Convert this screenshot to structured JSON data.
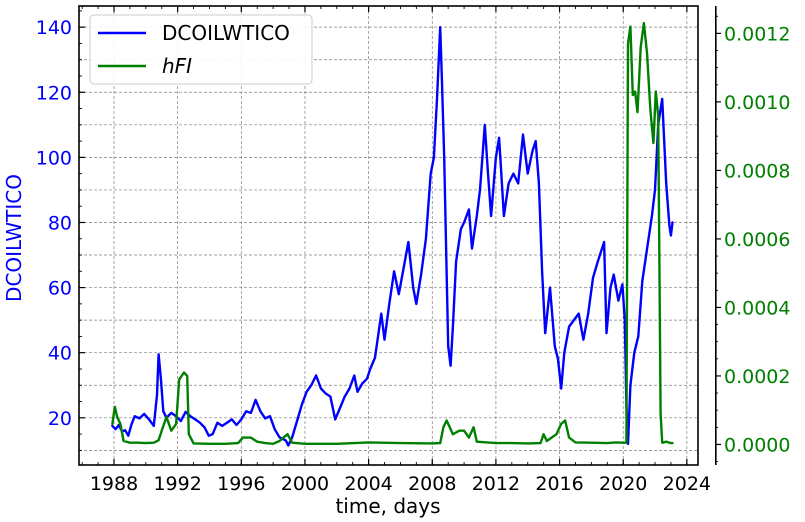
{
  "chart_data": {
    "type": "line",
    "xlabel": "time, days",
    "ylabel_left": "DCOILWTICO",
    "x_ticks": [
      "1988",
      "1992",
      "1996",
      "2000",
      "2004",
      "2008",
      "2012",
      "2016",
      "2020",
      "2024"
    ],
    "xlim": [
      1985.8,
      2024.7
    ],
    "left_axis": {
      "ticks": [
        "20",
        "40",
        "60",
        "80",
        "100",
        "120",
        "140"
      ],
      "ylim": [
        5.5,
        146.5
      ],
      "color": "#0000ff"
    },
    "right_axis": {
      "ticks": [
        "0.0000",
        "0.0002",
        "0.0004",
        "0.0006",
        "0.0008",
        "0.0010",
        "0.0012"
      ],
      "ylim": [
        -6e-05,
        0.00128
      ],
      "color": "#008000"
    },
    "grid": true,
    "legend_position": "top-left",
    "series": [
      {
        "name": "DCOILWTICO",
        "axis": "left",
        "color": "#0000ff",
        "points": [
          [
            1987.9,
            17.5
          ],
          [
            1988.1,
            16.5
          ],
          [
            1988.3,
            17.8
          ],
          [
            1988.5,
            15.8
          ],
          [
            1988.7,
            16.2
          ],
          [
            1988.9,
            14.5
          ],
          [
            1989.1,
            18.0
          ],
          [
            1989.3,
            20.5
          ],
          [
            1989.6,
            19.8
          ],
          [
            1989.9,
            21.2
          ],
          [
            1990.2,
            19.5
          ],
          [
            1990.5,
            17.5
          ],
          [
            1990.7,
            27.0
          ],
          [
            1990.8,
            39.5
          ],
          [
            1990.95,
            32.0
          ],
          [
            1991.1,
            22.0
          ],
          [
            1991.3,
            20.0
          ],
          [
            1991.6,
            21.5
          ],
          [
            1991.9,
            20.5
          ],
          [
            1992.2,
            19.0
          ],
          [
            1992.5,
            21.8
          ],
          [
            1992.8,
            20.5
          ],
          [
            1993.1,
            19.5
          ],
          [
            1993.4,
            18.5
          ],
          [
            1993.7,
            17.0
          ],
          [
            1993.95,
            14.5
          ],
          [
            1994.2,
            15.0
          ],
          [
            1994.5,
            18.5
          ],
          [
            1994.8,
            17.5
          ],
          [
            1995.1,
            18.5
          ],
          [
            1995.4,
            19.5
          ],
          [
            1995.7,
            17.8
          ],
          [
            1996.0,
            19.5
          ],
          [
            1996.3,
            22.0
          ],
          [
            1996.6,
            21.5
          ],
          [
            1996.9,
            25.5
          ],
          [
            1997.2,
            22.0
          ],
          [
            1997.5,
            19.8
          ],
          [
            1997.8,
            20.5
          ],
          [
            1998.1,
            16.5
          ],
          [
            1998.4,
            14.0
          ],
          [
            1998.8,
            13.0
          ],
          [
            1998.95,
            11.5
          ],
          [
            1999.2,
            14.0
          ],
          [
            1999.5,
            19.0
          ],
          [
            1999.8,
            24.0
          ],
          [
            2000.1,
            28.0
          ],
          [
            2000.4,
            30.0
          ],
          [
            2000.7,
            33.0
          ],
          [
            2001.0,
            29.0
          ],
          [
            2001.3,
            27.5
          ],
          [
            2001.6,
            26.5
          ],
          [
            2001.9,
            19.5
          ],
          [
            2002.2,
            23.0
          ],
          [
            2002.5,
            26.5
          ],
          [
            2002.8,
            29.0
          ],
          [
            2003.1,
            33.0
          ],
          [
            2003.3,
            28.0
          ],
          [
            2003.6,
            30.5
          ],
          [
            2003.9,
            32.0
          ],
          [
            2004.1,
            35.0
          ],
          [
            2004.4,
            38.5
          ],
          [
            2004.8,
            52.0
          ],
          [
            2005.0,
            44.0
          ],
          [
            2005.3,
            55.0
          ],
          [
            2005.6,
            65.0
          ],
          [
            2005.9,
            58.0
          ],
          [
            2006.2,
            66.0
          ],
          [
            2006.5,
            74.0
          ],
          [
            2006.8,
            60.0
          ],
          [
            2007.0,
            55.0
          ],
          [
            2007.3,
            64.0
          ],
          [
            2007.6,
            75.0
          ],
          [
            2007.9,
            95.0
          ],
          [
            2008.1,
            100.0
          ],
          [
            2008.3,
            118.0
          ],
          [
            2008.5,
            140.0
          ],
          [
            2008.6,
            125.0
          ],
          [
            2008.75,
            100.0
          ],
          [
            2008.9,
            65.0
          ],
          [
            2009.0,
            42.0
          ],
          [
            2009.15,
            36.0
          ],
          [
            2009.3,
            48.0
          ],
          [
            2009.5,
            68.0
          ],
          [
            2009.8,
            78.0
          ],
          [
            2010.0,
            80.0
          ],
          [
            2010.3,
            84.0
          ],
          [
            2010.5,
            72.0
          ],
          [
            2010.8,
            82.0
          ],
          [
            2011.0,
            90.0
          ],
          [
            2011.3,
            110.0
          ],
          [
            2011.5,
            95.0
          ],
          [
            2011.7,
            82.0
          ],
          [
            2012.0,
            100.0
          ],
          [
            2012.2,
            106.0
          ],
          [
            2012.5,
            82.0
          ],
          [
            2012.8,
            92.0
          ],
          [
            2013.1,
            95.0
          ],
          [
            2013.4,
            92.0
          ],
          [
            2013.7,
            107.0
          ],
          [
            2014.0,
            95.0
          ],
          [
            2014.3,
            102.0
          ],
          [
            2014.5,
            105.0
          ],
          [
            2014.7,
            92.0
          ],
          [
            2014.9,
            65.0
          ],
          [
            2015.1,
            46.0
          ],
          [
            2015.4,
            60.0
          ],
          [
            2015.7,
            42.0
          ],
          [
            2015.9,
            38.0
          ],
          [
            2016.1,
            29.0
          ],
          [
            2016.3,
            40.0
          ],
          [
            2016.6,
            48.0
          ],
          [
            2016.9,
            50.0
          ],
          [
            2017.2,
            52.0
          ],
          [
            2017.5,
            44.0
          ],
          [
            2017.8,
            52.0
          ],
          [
            2018.1,
            63.0
          ],
          [
            2018.4,
            68.0
          ],
          [
            2018.8,
            74.0
          ],
          [
            2018.95,
            46.0
          ],
          [
            2019.2,
            60.0
          ],
          [
            2019.4,
            64.0
          ],
          [
            2019.7,
            56.0
          ],
          [
            2019.95,
            61.0
          ],
          [
            2020.1,
            50.0
          ],
          [
            2020.2,
            24.0
          ],
          [
            2020.3,
            12.0
          ],
          [
            2020.45,
            30.0
          ],
          [
            2020.7,
            40.0
          ],
          [
            2020.95,
            45.0
          ],
          [
            2021.2,
            62.0
          ],
          [
            2021.5,
            72.0
          ],
          [
            2021.8,
            82.0
          ],
          [
            2022.0,
            90.0
          ],
          [
            2022.2,
            110.0
          ],
          [
            2022.45,
            118.0
          ],
          [
            2022.7,
            92.0
          ],
          [
            2022.9,
            79.0
          ],
          [
            2023.0,
            76.0
          ],
          [
            2023.1,
            80.0
          ]
        ]
      },
      {
        "name": "hFI",
        "axis": "right",
        "color": "#008000",
        "points": [
          [
            1987.9,
            6e-05
          ],
          [
            1988.05,
            0.00011
          ],
          [
            1988.2,
            8e-05
          ],
          [
            1988.4,
            6e-05
          ],
          [
            1988.6,
            1e-05
          ],
          [
            1989.0,
            5e-06
          ],
          [
            1989.5,
            5e-06
          ],
          [
            1990.0,
            4e-06
          ],
          [
            1990.5,
            5e-06
          ],
          [
            1990.8,
            1.2e-05
          ],
          [
            1991.0,
            4e-05
          ],
          [
            1991.3,
            8e-05
          ],
          [
            1991.6,
            4e-05
          ],
          [
            1991.9,
            6e-05
          ],
          [
            1992.1,
            0.00019
          ],
          [
            1992.4,
            0.00021
          ],
          [
            1992.6,
            0.0002
          ],
          [
            1992.7,
            3e-05
          ],
          [
            1993.0,
            3e-06
          ],
          [
            1994.0,
            2e-06
          ],
          [
            1995.0,
            2e-06
          ],
          [
            1995.8,
            4e-06
          ],
          [
            1996.1,
            2e-05
          ],
          [
            1996.6,
            2e-05
          ],
          [
            1997.0,
            8e-06
          ],
          [
            1997.5,
            4e-06
          ],
          [
            1998.0,
            2e-06
          ],
          [
            1998.4,
            1e-05
          ],
          [
            1998.9,
            3e-05
          ],
          [
            1999.2,
            5e-06
          ],
          [
            2000.0,
            2e-06
          ],
          [
            2002.0,
            2e-06
          ],
          [
            2004.0,
            6e-06
          ],
          [
            2006.0,
            4e-06
          ],
          [
            2008.0,
            3e-06
          ],
          [
            2008.5,
            4e-06
          ],
          [
            2008.7,
            5e-05
          ],
          [
            2008.9,
            7e-05
          ],
          [
            2009.1,
            5e-05
          ],
          [
            2009.3,
            3e-05
          ],
          [
            2009.7,
            4e-05
          ],
          [
            2010.0,
            4e-05
          ],
          [
            2010.3,
            2e-05
          ],
          [
            2010.6,
            5e-05
          ],
          [
            2010.8,
            8e-06
          ],
          [
            2012.0,
            4e-06
          ],
          [
            2013.0,
            4e-06
          ],
          [
            2014.0,
            3e-06
          ],
          [
            2014.8,
            4e-06
          ],
          [
            2015.0,
            3e-05
          ],
          [
            2015.2,
            1e-05
          ],
          [
            2015.5,
            2e-05
          ],
          [
            2015.8,
            3e-05
          ],
          [
            2016.1,
            6e-05
          ],
          [
            2016.35,
            7e-05
          ],
          [
            2016.6,
            2e-05
          ],
          [
            2017.0,
            6e-06
          ],
          [
            2018.0,
            5e-06
          ],
          [
            2019.0,
            4e-06
          ],
          [
            2019.5,
            6e-06
          ],
          [
            2020.0,
            5e-06
          ],
          [
            2020.2,
            5e-06
          ],
          [
            2020.3,
            0.00117
          ],
          [
            2020.45,
            0.00122
          ],
          [
            2020.6,
            0.00102
          ],
          [
            2020.75,
            0.00103
          ],
          [
            2020.9,
            0.00097
          ],
          [
            2021.1,
            0.00116
          ],
          [
            2021.3,
            0.00123
          ],
          [
            2021.5,
            0.00114
          ],
          [
            2021.7,
            0.00098
          ],
          [
            2021.9,
            0.00088
          ],
          [
            2022.05,
            0.00103
          ],
          [
            2022.2,
            0.00096
          ],
          [
            2022.35,
            9e-05
          ],
          [
            2022.45,
            5e-06
          ],
          [
            2022.7,
            8e-06
          ],
          [
            2023.0,
            4e-06
          ],
          [
            2023.1,
            4e-06
          ]
        ]
      }
    ]
  }
}
